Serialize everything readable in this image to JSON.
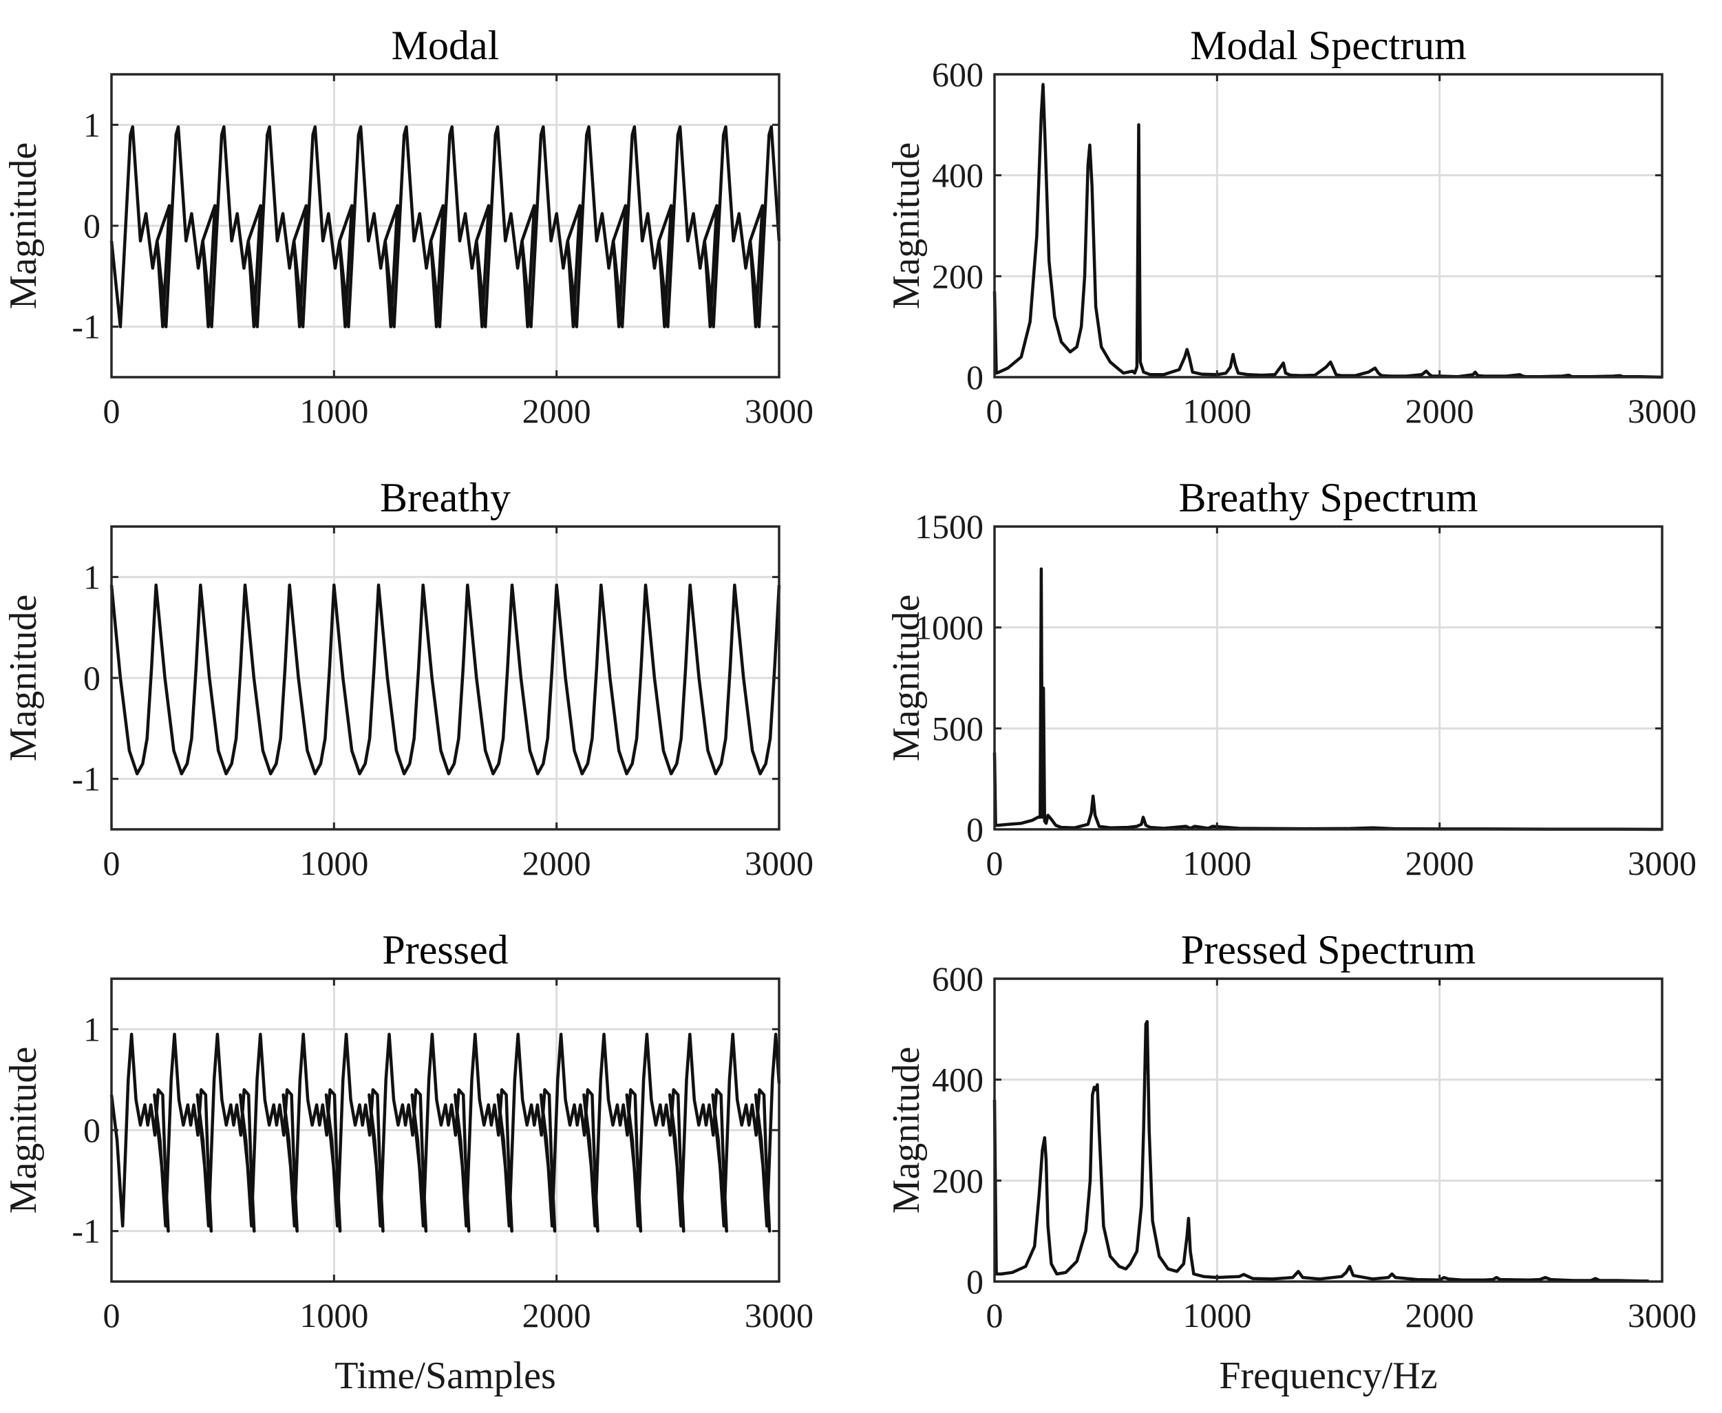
{
  "figure": {
    "xlabel_time": "Time/Samples",
    "xlabel_freq": "Frequency/Hz"
  },
  "chart_data": [
    {
      "id": "modal",
      "type": "line",
      "title": "Modal",
      "xlabel": "",
      "ylabel": "Magnitude",
      "xlim": [
        0,
        3000
      ],
      "ylim": [
        -1.5,
        1.5
      ],
      "xticks": [
        0,
        1000,
        2000,
        3000
      ],
      "xtick_labels": [
        "0",
        "1000",
        "2000",
        "3000"
      ],
      "yticks": [
        -1,
        0,
        1
      ],
      "ytick_labels": [
        "-1",
        "0",
        "1"
      ],
      "grid": true,
      "series": [
        {
          "name": "Modal waveform",
          "color": "#111111",
          "x": [
            0,
            40,
            85,
            95,
            130,
            155,
            185,
            205,
            230,
            260,
            300
          ],
          "y": [
            -0.15,
            -1.0,
            0.9,
            0.98,
            -0.15,
            0.12,
            -0.42,
            -0.15,
            -1.0,
            0.2,
            0.98
          ],
          "period": 205,
          "x_start": 0,
          "x_end": 3000
        }
      ]
    },
    {
      "id": "modal_spec",
      "type": "line",
      "title": "Modal Spectrum",
      "xlabel": "",
      "ylabel": "Magnitude",
      "xlim": [
        0,
        3000
      ],
      "ylim": [
        0,
        600
      ],
      "xticks": [
        0,
        1000,
        2000,
        3000
      ],
      "xtick_labels": [
        "0",
        "1000",
        "2000",
        "3000"
      ],
      "yticks": [
        0,
        200,
        400,
        600
      ],
      "ytick_labels": [
        "0",
        "200",
        "400",
        "600"
      ],
      "grid": true,
      "series": [
        {
          "name": "Modal spectrum",
          "color": "#111111",
          "x": [
            0,
            8,
            20,
            60,
            120,
            160,
            190,
            210,
            218,
            228,
            245,
            270,
            300,
            340,
            370,
            390,
            405,
            420,
            428,
            438,
            455,
            480,
            520,
            560,
            580,
            600,
            620,
            630,
            640,
            648,
            655,
            670,
            700,
            760,
            830,
            855,
            865,
            875,
            890,
            930,
            1000,
            1040,
            1060,
            1072,
            1082,
            1095,
            1140,
            1200,
            1260,
            1285,
            1298,
            1308,
            1330,
            1380,
            1440,
            1490,
            1510,
            1522,
            1535,
            1560,
            1620,
            1680,
            1710,
            1725,
            1740,
            1780,
            1850,
            1920,
            1940,
            1953,
            1965,
            2000,
            2080,
            2150,
            2160,
            2172,
            2200,
            2300,
            2360,
            2374,
            2390,
            2450,
            2550,
            2580,
            2595,
            2610,
            2680,
            2780,
            2810,
            2825,
            2840,
            2900,
            3000
          ],
          "y": [
            170,
            8,
            10,
            18,
            40,
            110,
            280,
            520,
            580,
            460,
            230,
            120,
            70,
            50,
            60,
            100,
            200,
            420,
            460,
            380,
            140,
            60,
            30,
            15,
            8,
            10,
            12,
            8,
            20,
            500,
            30,
            10,
            5,
            5,
            15,
            40,
            55,
            40,
            10,
            6,
            5,
            8,
            20,
            45,
            25,
            8,
            5,
            4,
            5,
            20,
            28,
            8,
            4,
            3,
            4,
            20,
            30,
            18,
            5,
            3,
            3,
            10,
            18,
            8,
            3,
            2,
            2,
            5,
            12,
            6,
            2,
            2,
            1,
            5,
            10,
            3,
            2,
            2,
            5,
            2,
            1,
            1,
            2,
            4,
            1,
            1,
            1,
            2,
            3,
            1,
            1,
            1,
            0
          ]
        }
      ]
    },
    {
      "id": "breathy",
      "type": "line",
      "title": "Breathy",
      "xlabel": "",
      "ylabel": "Magnitude",
      "xlim": [
        0,
        3000
      ],
      "ylim": [
        -1.5,
        1.5
      ],
      "xticks": [
        0,
        1000,
        2000,
        3000
      ],
      "xtick_labels": [
        "0",
        "1000",
        "2000",
        "3000"
      ],
      "yticks": [
        -1,
        0,
        1
      ],
      "ytick_labels": [
        "-1",
        "0",
        "1"
      ],
      "grid": true,
      "series": [
        {
          "name": "Breathy waveform",
          "color": "#111111",
          "x": [
            0,
            40,
            80,
            115,
            140,
            160,
            180,
            200
          ],
          "y": [
            0.92,
            0.0,
            -0.72,
            -0.95,
            -0.85,
            -0.6,
            0.1,
            0.92
          ],
          "period": 200,
          "x_start": 0,
          "x_end": 3000
        }
      ]
    },
    {
      "id": "breathy_spec",
      "type": "line",
      "title": "Breathy Spectrum",
      "xlabel": "",
      "ylabel": "Magnitude",
      "xlim": [
        0,
        3000
      ],
      "ylim": [
        0,
        1500
      ],
      "xticks": [
        0,
        1000,
        2000,
        3000
      ],
      "xtick_labels": [
        "0",
        "1000",
        "2000",
        "3000"
      ],
      "yticks": [
        0,
        500,
        1000,
        1500
      ],
      "ytick_labels": [
        "0",
        "500",
        "1000",
        "1500"
      ],
      "grid": true,
      "series": [
        {
          "name": "Breathy spectrum",
          "color": "#111111",
          "x": [
            0,
            5,
            15,
            60,
            120,
            170,
            195,
            205,
            210,
            215,
            220,
            225,
            232,
            240,
            255,
            275,
            300,
            360,
            420,
            435,
            443,
            452,
            470,
            520,
            600,
            640,
            660,
            668,
            680,
            700,
            760,
            860,
            880,
            900,
            960,
            980,
            1100,
            1200,
            1400,
            1600,
            1700,
            1800,
            2000,
            2200,
            2500,
            2800,
            3000
          ],
          "y": [
            380,
            20,
            20,
            25,
            30,
            45,
            60,
            60,
            1290,
            60,
            700,
            40,
            30,
            70,
            50,
            20,
            10,
            8,
            25,
            80,
            165,
            70,
            15,
            8,
            10,
            15,
            25,
            60,
            20,
            10,
            5,
            15,
            5,
            15,
            5,
            15,
            5,
            4,
            3,
            4,
            8,
            3,
            2,
            2,
            1,
            1,
            0
          ]
        }
      ]
    },
    {
      "id": "pressed",
      "type": "line",
      "title": "Pressed",
      "xlabel": "Time/Samples",
      "ylabel": "Magnitude",
      "xlim": [
        0,
        3000
      ],
      "ylim": [
        -1.5,
        1.5
      ],
      "xticks": [
        0,
        1000,
        2000,
        3000
      ],
      "xtick_labels": [
        "0",
        "1000",
        "2000",
        "3000"
      ],
      "yticks": [
        -1,
        0,
        1
      ],
      "ytick_labels": [
        "-1",
        "0",
        "1"
      ],
      "grid": true,
      "series": [
        {
          "name": "Pressed waveform",
          "color": "#111111",
          "x": [
            0,
            25,
            50,
            75,
            90,
            110,
            130,
            150,
            163,
            177,
            195,
            210,
            230,
            240,
            255,
            283
          ],
          "y": [
            0.35,
            -0.1,
            -0.95,
            0.5,
            0.95,
            0.3,
            0.05,
            0.25,
            0.05,
            0.25,
            -0.05,
            0.4,
            0.35,
            -0.3,
            -1.0,
            0.95
          ],
          "period": 193,
          "x_start": 0,
          "x_end": 3000
        }
      ]
    },
    {
      "id": "pressed_spec",
      "type": "line",
      "title": "Pressed Spectrum",
      "xlabel": "Frequency/Hz",
      "ylabel": "Magnitude",
      "xlim": [
        0,
        3000
      ],
      "ylim": [
        0,
        600
      ],
      "xticks": [
        0,
        1000,
        2000,
        3000
      ],
      "xtick_labels": [
        "0",
        "1000",
        "2000",
        "3000"
      ],
      "yticks": [
        0,
        200,
        400,
        600
      ],
      "ytick_labels": [
        "0",
        "200",
        "400",
        "600"
      ],
      "grid": true,
      "series": [
        {
          "name": "Pressed spectrum",
          "color": "#111111",
          "x": [
            0,
            8,
            30,
            80,
            140,
            180,
            200,
            215,
            225,
            232,
            240,
            255,
            280,
            320,
            370,
            410,
            430,
            440,
            448,
            455,
            462,
            470,
            490,
            520,
            560,
            590,
            610,
            640,
            660,
            670,
            680,
            686,
            695,
            710,
            740,
            780,
            820,
            850,
            865,
            872,
            880,
            895,
            940,
            1000,
            1100,
            1120,
            1140,
            1160,
            1250,
            1340,
            1365,
            1385,
            1460,
            1560,
            1580,
            1596,
            1612,
            1700,
            1770,
            1786,
            1802,
            1900,
            2000,
            2020,
            2040,
            2100,
            2200,
            2240,
            2256,
            2272,
            2400,
            2450,
            2475,
            2500,
            2600,
            2680,
            2700,
            2720,
            2800,
            2900,
            2940
          ],
          "y": [
            360,
            15,
            15,
            18,
            30,
            70,
            170,
            260,
            285,
            240,
            110,
            35,
            15,
            18,
            40,
            100,
            200,
            370,
            385,
            380,
            390,
            300,
            110,
            50,
            30,
            25,
            35,
            60,
            150,
            300,
            510,
            515,
            300,
            120,
            50,
            25,
            20,
            35,
            90,
            125,
            60,
            15,
            10,
            8,
            10,
            14,
            10,
            6,
            5,
            8,
            20,
            8,
            5,
            10,
            18,
            30,
            12,
            5,
            8,
            15,
            8,
            4,
            3,
            8,
            5,
            3,
            3,
            4,
            8,
            4,
            3,
            4,
            8,
            4,
            2,
            2,
            6,
            2,
            2,
            1,
            1
          ]
        }
      ]
    }
  ]
}
